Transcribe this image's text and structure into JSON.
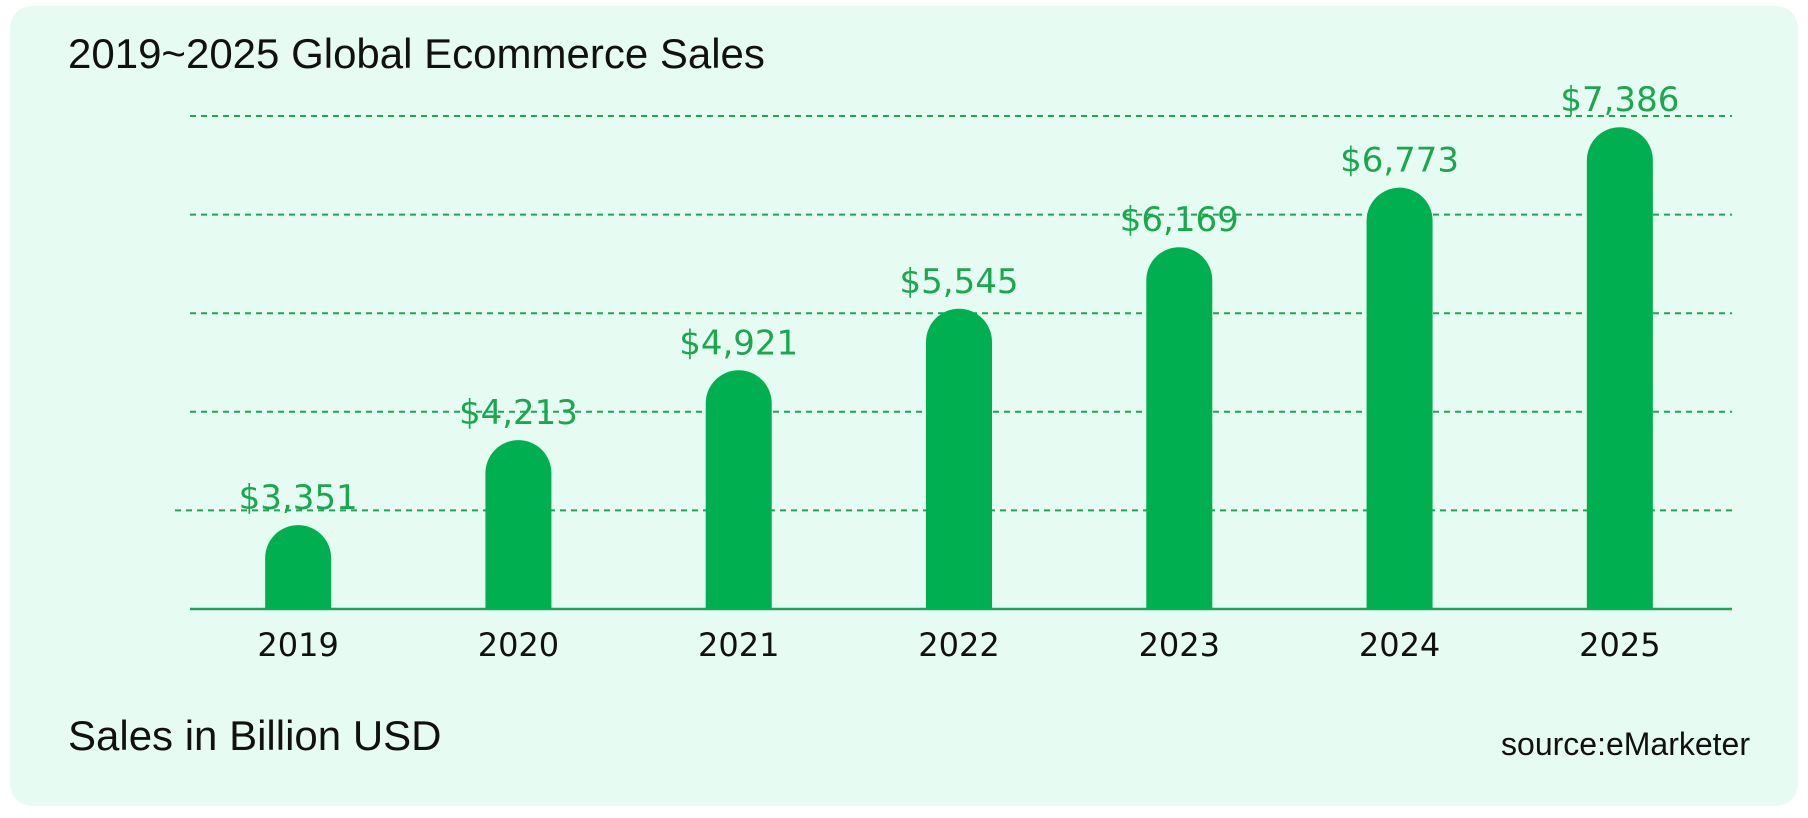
{
  "chart_data": {
    "type": "bar",
    "title": "2019~2025 Global Ecommerce Sales",
    "ylabel": "Sales in Billion USD",
    "source": "source:eMarketer",
    "categories": [
      "2019",
      "2020",
      "2021",
      "2022",
      "2023",
      "2024",
      "2025"
    ],
    "values": [
      3351,
      4213,
      4921,
      5545,
      6169,
      6773,
      7386
    ],
    "value_labels": [
      "$3,351",
      "$4,213",
      "$4,921",
      "$5,545",
      "$6,169",
      "$6,773",
      "$7,386"
    ],
    "ylim": [
      2500,
      7500
    ],
    "grid": "dashed horizontal",
    "axes_visible": false,
    "colors": {
      "bar": "#00b050",
      "value_label": "#1aa84f",
      "grid": "#20a457",
      "baseline": "#20a457",
      "background": "#e6fbf1"
    }
  }
}
